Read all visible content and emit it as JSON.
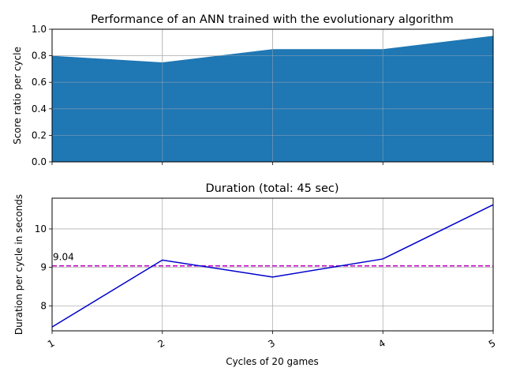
{
  "chart_data": [
    {
      "type": "area",
      "title": "Performance of an ANN trained with the evolutionary algorithm",
      "xlabel": "",
      "ylabel": "Score ratio per cycle",
      "x": [
        1,
        2,
        3,
        4,
        5
      ],
      "values": [
        0.8,
        0.75,
        0.85,
        0.85,
        0.95
      ],
      "xlim": [
        1,
        5
      ],
      "ylim": [
        0.0,
        1.0
      ],
      "yticks": [
        "0.0",
        "0.2",
        "0.4",
        "0.6",
        "0.8",
        "1.0"
      ],
      "grid": true,
      "color": "#1f77b4"
    },
    {
      "type": "line",
      "title": "Duration (total: 45 sec)",
      "xlabel": "Cycles of 20 games",
      "ylabel": "Duration per cycle in seconds",
      "x": [
        1,
        2,
        3,
        4,
        5
      ],
      "values": [
        7.45,
        9.19,
        8.75,
        9.22,
        10.63
      ],
      "xticks": [
        "1",
        "2",
        "3",
        "4",
        "5"
      ],
      "xlim": [
        1,
        5
      ],
      "ylim": [
        7.35,
        10.8
      ],
      "yticks": [
        "8",
        "9",
        "10"
      ],
      "grid": true,
      "color": "#0000cd",
      "mean_line": {
        "value": 9.04,
        "label": "9.04",
        "color": "#bf00bf",
        "style": "dashed"
      }
    }
  ]
}
